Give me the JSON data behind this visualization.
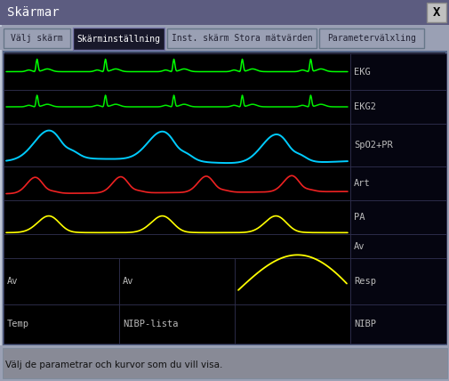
{
  "title": "Skärmar",
  "close_btn": "X",
  "tabs": [
    "Välj skärm",
    "Skärminställning",
    "Inst. skärm Stora mätvärden",
    "Parametervälxling"
  ],
  "active_tab": 1,
  "row_labels": [
    "EKG",
    "EKG2",
    "SpO2+PR",
    "Art",
    "PA",
    "Av",
    "Resp",
    "NIBP"
  ],
  "status_bar": "Välj de parametrar och kurvor som du vill visa.",
  "bg_outer": "#9aa0b4",
  "title_bar_color": "#5c5c80",
  "close_btn_color": "#cccccc",
  "tab_bar_bg": "#9aa0b4",
  "tab_active_bg": "#1a1a30",
  "tab_active_border": "#8888aa",
  "tab_inactive_bg": "#9aa0b4",
  "panel_bg": "#000000",
  "panel_border": "#556677",
  "signal_bg": "#000000",
  "label_bg": "#000000",
  "label_color": "#bbbbbb",
  "cell_border": "#333355",
  "status_bg": "#9aa0b4",
  "status_inner_bg": "#888a96",
  "ekg_color": "#00ff00",
  "ekg2_color": "#00ee00",
  "spo2_color": "#00ccff",
  "art_color": "#ee2222",
  "pa_color": "#ffff00",
  "resp_color": "#ffff00",
  "figw": 5.06,
  "figh": 4.28,
  "dpi": 100
}
